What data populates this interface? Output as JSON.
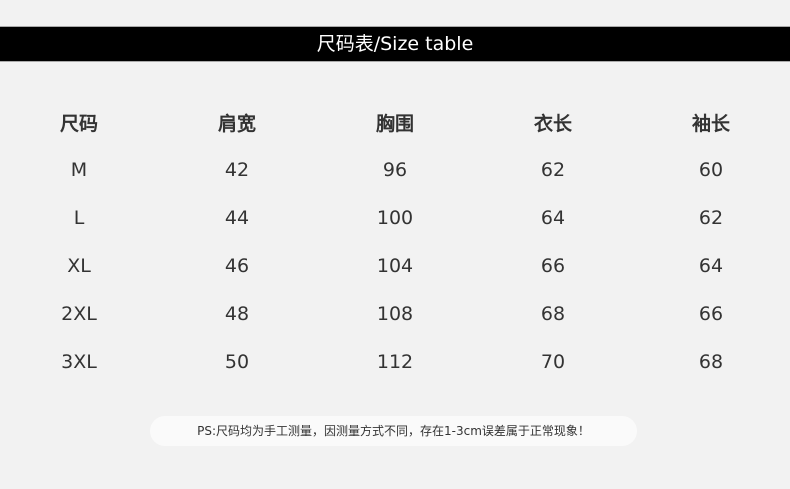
{
  "title": "尺码表/Size table",
  "table": {
    "headers": [
      "尺码",
      "肩宽",
      "胸围",
      "衣长",
      "袖长"
    ],
    "rows": [
      [
        "M",
        "42",
        "96",
        "62",
        "60"
      ],
      [
        "L",
        "44",
        "100",
        "64",
        "62"
      ],
      [
        "XL",
        "46",
        "104",
        "66",
        "64"
      ],
      [
        "2XL",
        "48",
        "108",
        "68",
        "66"
      ],
      [
        "3XL",
        "50",
        "112",
        "70",
        "68"
      ]
    ]
  },
  "note": "PS:尺码均为手工测量，因测量方式不同，存在1-3cm误差属于正常现象！"
}
